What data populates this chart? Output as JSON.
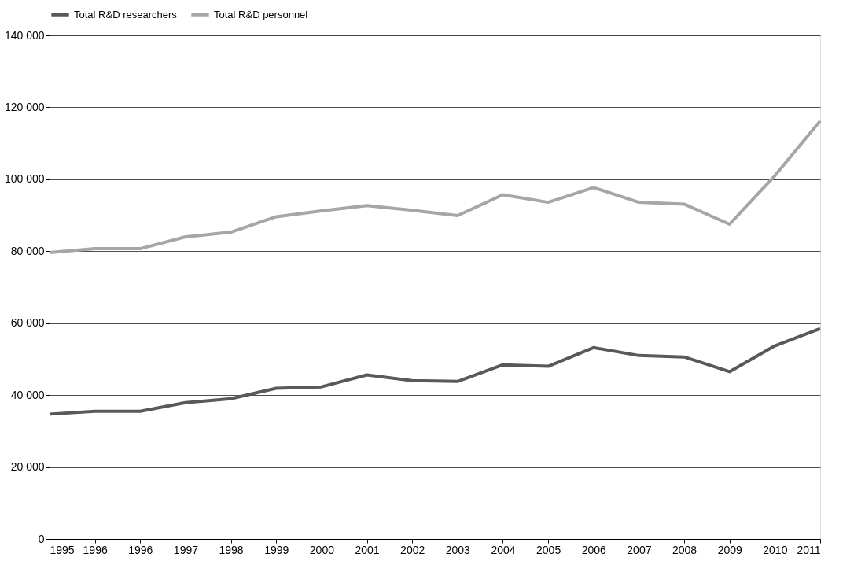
{
  "chart_data": {
    "type": "line",
    "categories": [
      "1995",
      "1996",
      "1996",
      "1997",
      "1998",
      "1999",
      "2000",
      "2001",
      "2002",
      "2003",
      "2004",
      "2005",
      "2006",
      "2007",
      "2008",
      "2009",
      "2010",
      "2011"
    ],
    "series": [
      {
        "name": "Total R&D researchers",
        "color": "#595959",
        "values": [
          34700,
          35500,
          35500,
          37900,
          39000,
          41900,
          42300,
          45600,
          44000,
          43800,
          48400,
          48000,
          53200,
          51000,
          50600,
          46500,
          53700,
          58500
        ]
      },
      {
        "name": "Total R&D personnel",
        "color": "#a6a6a6",
        "values": [
          79600,
          80700,
          80700,
          84000,
          85300,
          89600,
          91200,
          92700,
          91400,
          89900,
          95700,
          93600,
          97700,
          93600,
          93100,
          87500,
          101000,
          116200
        ]
      }
    ],
    "ylim": [
      0,
      140000
    ],
    "yticks": [
      0,
      {
        "value": 20000,
        "label": "20 000"
      },
      {
        "value": 40000,
        "label": "40 000"
      },
      {
        "value": 60000,
        "label": "60 000"
      },
      {
        "value": 80000,
        "label": "80 000"
      },
      {
        "value": 100000,
        "label": "100 000"
      },
      {
        "value": 120000,
        "label": "120 000"
      },
      {
        "value": 140000,
        "label": "140 000"
      }
    ],
    "grid": "y",
    "legend": "top",
    "marker": "none",
    "line_style": "solid"
  }
}
